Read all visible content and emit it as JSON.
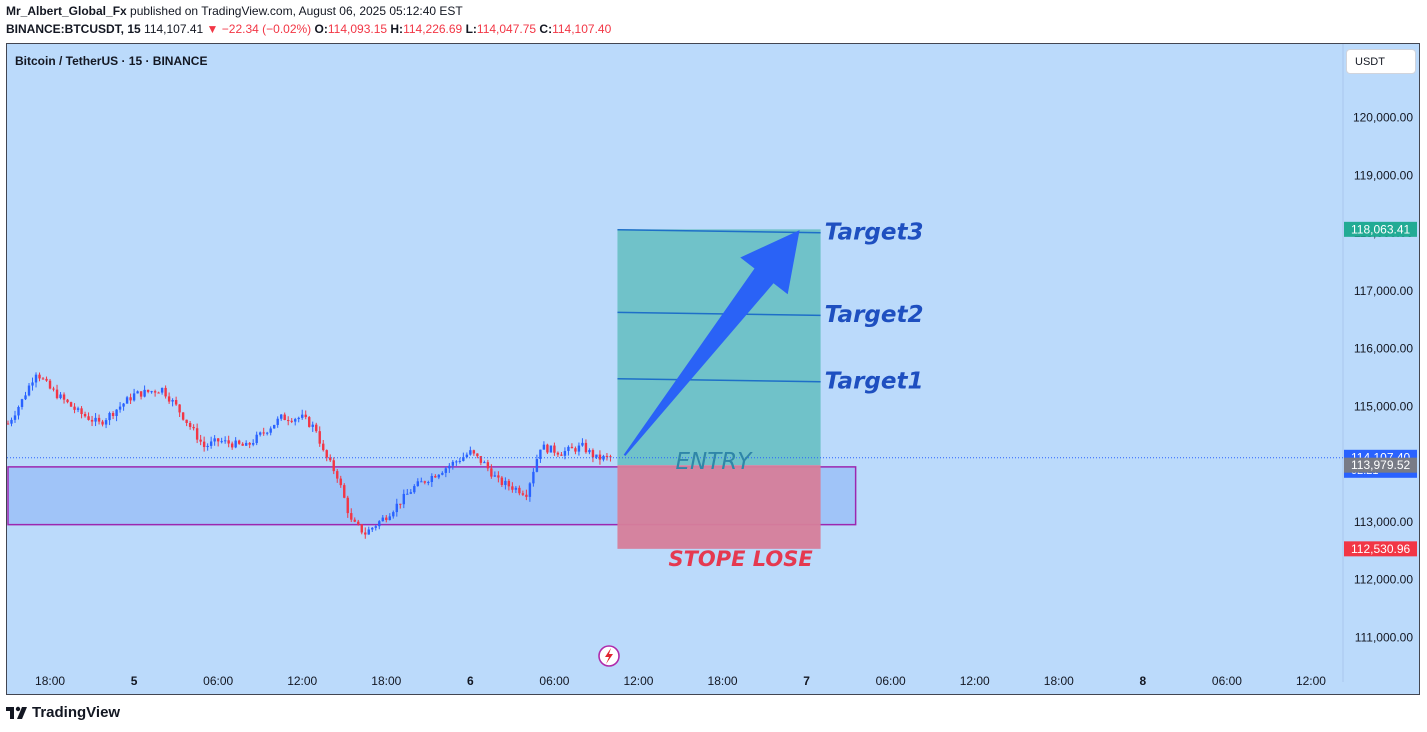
{
  "header": {
    "author": "Mr_Albert_Global_Fx",
    "published": "published on TradingView.com, August 06, 2025 05:12:40 EST",
    "symbol": "BINANCE:BTCUSDT, 15",
    "last": "114,107.41",
    "change": "−22.34 (−0.02%)",
    "o_label": "O:",
    "o": "114,093.15",
    "h_label": "H:",
    "h": "114,226.69",
    "l_label": "L:",
    "l": "114,047.75",
    "c_label": "C:",
    "c": "114,107.40"
  },
  "chart_title": "Bitcoin / TetherUS · 15 · BINANCE",
  "currency_button": "USDT",
  "footer": {
    "brand": "TradingView"
  },
  "chart_data": {
    "type": "candlestick",
    "ylim": [
      110700,
      121200
    ],
    "y_ticks": [
      111000,
      112000,
      113000,
      114000,
      115000,
      116000,
      117000,
      118000,
      119000,
      120000
    ],
    "y_tick_labels": [
      "111,000.00",
      "112,000.00",
      "113,000.00",
      "114,000.00",
      "115,000.00",
      "116,000.00",
      "117,000.00",
      "118,000.00",
      "119,000.00",
      "120,000.00"
    ],
    "x_tick_labels": [
      "18:00",
      "5",
      "06:00",
      "12:00",
      "18:00",
      "6",
      "06:00",
      "12:00",
      "18:00",
      "7",
      "06:00",
      "12:00",
      "18:00",
      "8",
      "06:00",
      "12:00"
    ],
    "x_start": "2025-08-04 15:00",
    "price_anchors": [
      [
        "2025-08-04 15:00",
        114700
      ],
      [
        "2025-08-04 16:00",
        115100
      ],
      [
        "2025-08-04 17:00",
        115600
      ],
      [
        "2025-08-04 18:00",
        115300
      ],
      [
        "2025-08-04 20:00",
        114900
      ],
      [
        "2025-08-04 21:30",
        114700
      ],
      [
        "2025-08-05 00:00",
        115200
      ],
      [
        "2025-08-05 02:00",
        115300
      ],
      [
        "2025-08-05 03:00",
        115000
      ],
      [
        "2025-08-05 05:00",
        114300
      ],
      [
        "2025-08-05 06:00",
        114400
      ],
      [
        "2025-08-05 08:00",
        114300
      ],
      [
        "2025-08-05 09:00",
        114500
      ],
      [
        "2025-08-05 10:30",
        114800
      ],
      [
        "2025-08-05 12:00",
        114800
      ],
      [
        "2025-08-05 13:00",
        114600
      ],
      [
        "2025-08-05 13:30",
        114200
      ],
      [
        "2025-08-05 14:30",
        113800
      ],
      [
        "2025-08-05 15:30",
        113000
      ],
      [
        "2025-08-05 16:30",
        112800
      ],
      [
        "2025-08-05 18:00",
        113100
      ],
      [
        "2025-08-05 20:00",
        113600
      ],
      [
        "2025-08-05 22:00",
        113900
      ],
      [
        "2025-08-06 00:00",
        114200
      ],
      [
        "2025-08-06 01:00",
        114000
      ],
      [
        "2025-08-06 02:00",
        113700
      ],
      [
        "2025-08-06 04:00",
        113500
      ],
      [
        "2025-08-06 05:00",
        114300
      ],
      [
        "2025-08-06 06:30",
        114200
      ],
      [
        "2025-08-06 08:00",
        114300
      ],
      [
        "2025-08-06 09:00",
        114100
      ],
      [
        "2025-08-06 10:00",
        114107
      ]
    ],
    "support_zone": {
      "start": "2025-08-04 15:00",
      "end": "2025-08-07 03:30",
      "top": 113950,
      "bottom": 112950
    },
    "position": {
      "start": "2025-08-06 10:30",
      "end": "2025-08-07 01:00",
      "entry": 113979.52,
      "target": 118063.41,
      "stop": 112530.96
    },
    "targets": [
      {
        "label": "Target1",
        "price": 115450
      },
      {
        "label": "Target2",
        "price": 116600
      },
      {
        "label": "Target3",
        "price": 118030
      }
    ],
    "entry_label": "ENTRY",
    "stop_label": "STOPE LOSE",
    "arrow": {
      "from": [
        "2025-08-06 11:00",
        114150
      ],
      "to": [
        "2025-08-06 23:30",
        118050
      ]
    },
    "price_badges": [
      {
        "text": "118,063.41",
        "price": 118063.41,
        "color": "#22ab94"
      },
      {
        "text": "114,107.40",
        "sub": "02:21",
        "price": 114107.4,
        "color": "#2962ff"
      },
      {
        "text": "113,979.52",
        "price": 113979.52,
        "color": "#787b86"
      },
      {
        "text": "112,530.96",
        "price": 112530.96,
        "color": "#f23645"
      }
    ],
    "colors": {
      "background": "#bbdafb",
      "up": "#2962ff",
      "down": "#f23645",
      "profit": "#6cc1c6",
      "loss": "#d67e9a",
      "zone_fill": "#a0c4f8",
      "zone_border": "#9c27b0",
      "target_line": "#1e6fc8",
      "label_text": "#1e4fc0",
      "arrow": "#2a62f6",
      "stop_text": "#e53950"
    }
  }
}
